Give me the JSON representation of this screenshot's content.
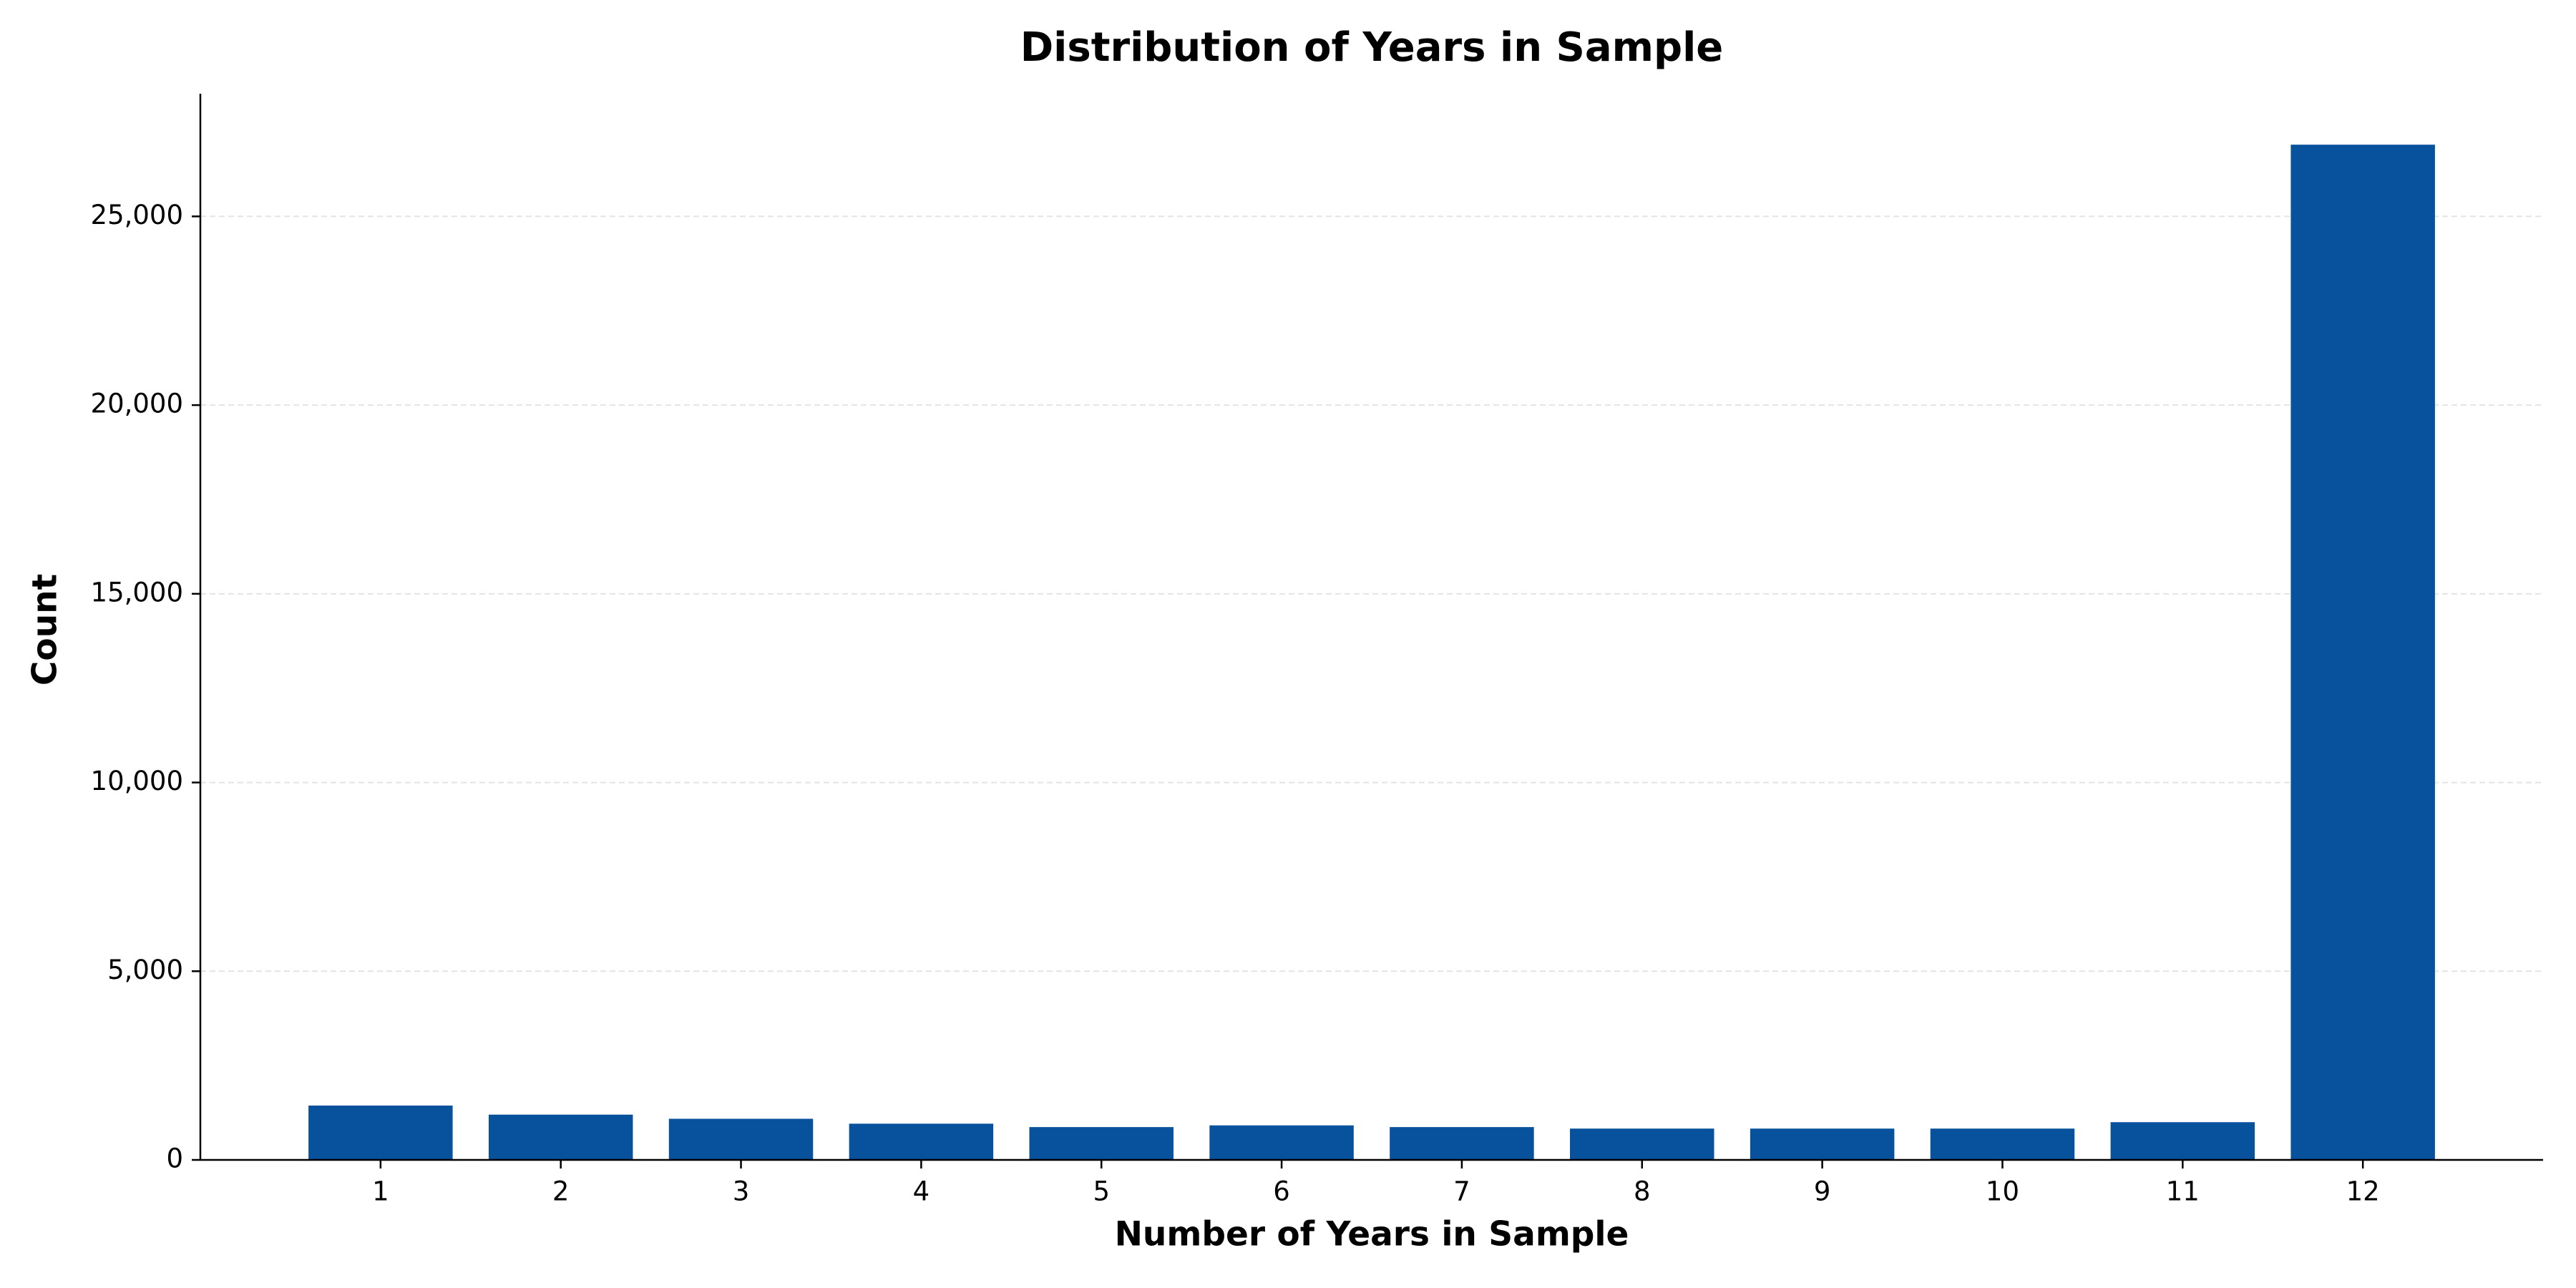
{
  "chart_data": {
    "type": "bar",
    "title": "Distribution of Years in Sample",
    "x_label": "Number of Years in Sample",
    "y_label": "Count",
    "categories": [
      "1",
      "2",
      "3",
      "4",
      "5",
      "6",
      "7",
      "8",
      "9",
      "10",
      "11",
      "12"
    ],
    "values": [
      1440,
      1200,
      1090,
      960,
      870,
      915,
      870,
      830,
      830,
      830,
      1000,
      26900
    ],
    "color": "#08519c",
    "ylim": [
      0,
      28250
    ],
    "yticks": [
      0,
      {
        "value": 5000,
        "label": "5,000"
      },
      {
        "value": 10000,
        "label": "10,000"
      },
      {
        "value": 15000,
        "label": "15,000"
      },
      {
        "value": 20000,
        "label": "20,000"
      },
      {
        "value": 25000,
        "label": "25,000"
      }
    ],
    "grid": true
  }
}
